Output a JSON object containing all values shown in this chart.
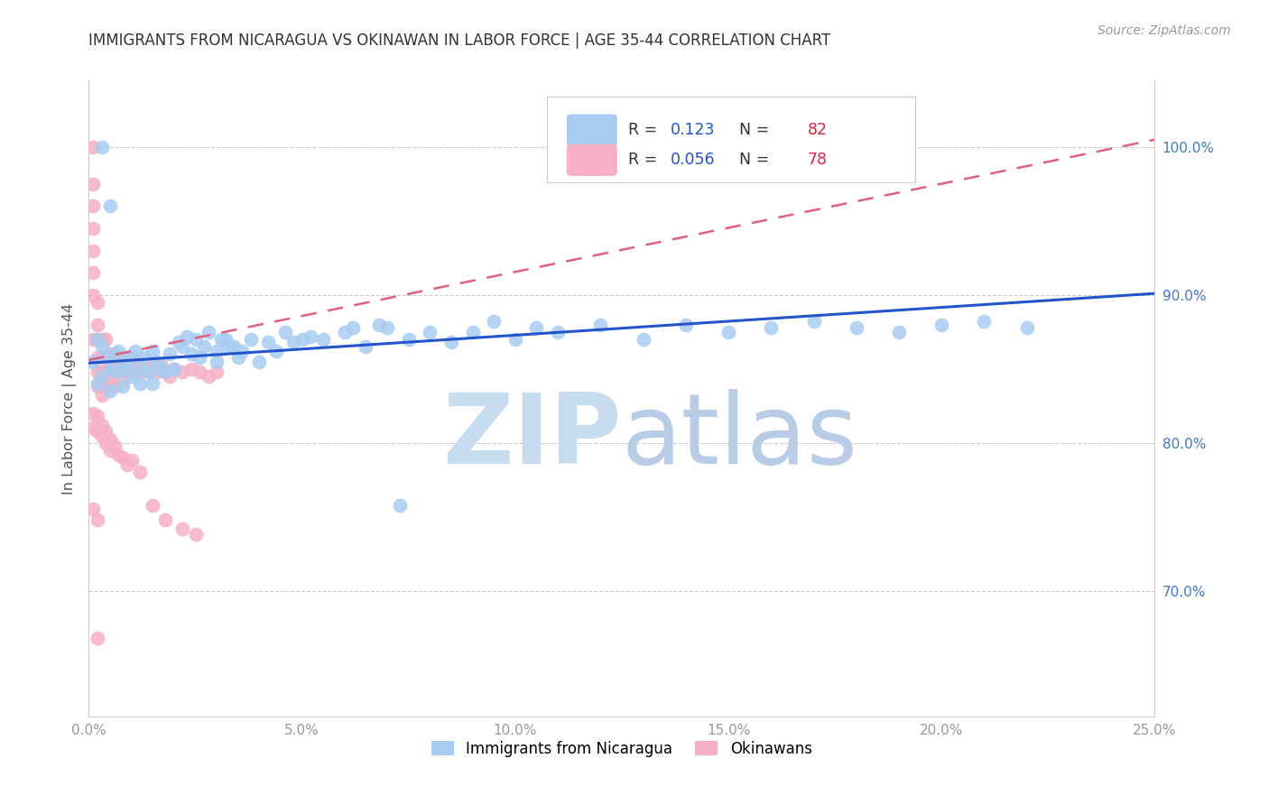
{
  "title": "IMMIGRANTS FROM NICARAGUA VS OKINAWAN IN LABOR FORCE | AGE 35-44 CORRELATION CHART",
  "source": "Source: ZipAtlas.com",
  "ylabel_label": "In Labor Force | Age 35-44",
  "x_range": [
    0.0,
    0.25
  ],
  "y_range": [
    0.615,
    1.045
  ],
  "y_ticks": [
    0.7,
    0.8,
    0.9,
    1.0
  ],
  "x_ticks": [
    0.0,
    0.05,
    0.1,
    0.15,
    0.2,
    0.25
  ],
  "legend_blue_r": "0.123",
  "legend_blue_n": "82",
  "legend_pink_r": "0.056",
  "legend_pink_n": "78",
  "legend_label_blue": "Immigrants from Nicaragua",
  "legend_label_pink": "Okinawans",
  "blue_scatter_color": "#A8CCF0",
  "pink_scatter_color": "#F5B0C5",
  "blue_line_color": "#2255CC",
  "pink_line_color": "#E06080",
  "legend_r_color": "#2255CC",
  "legend_n_color": "#DD2244",
  "title_color": "#333333",
  "source_color": "#999999",
  "tick_color_x": "#999999",
  "tick_color_y": "#4477CC",
  "grid_color": "#cccccc",
  "watermark_zip_color": "#C8DCF0",
  "watermark_atlas_color": "#B8CCE8"
}
